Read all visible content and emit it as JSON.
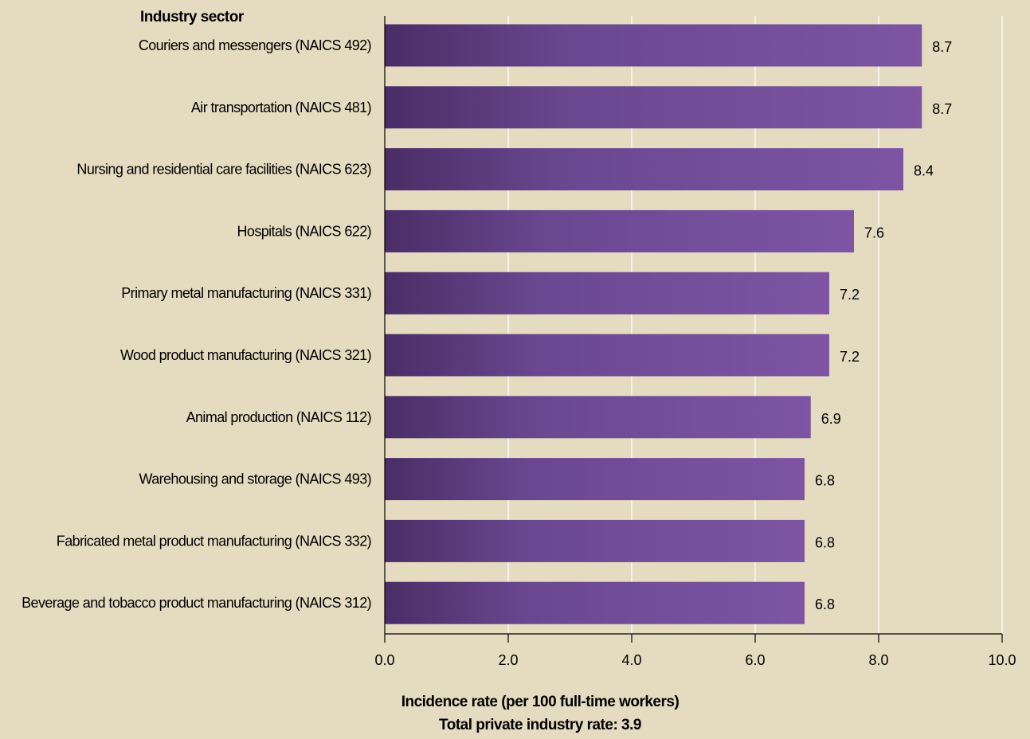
{
  "colors": {
    "background": "#e5dbc0",
    "bar_dark": "#4a2d66",
    "bar_mid": "#6a4890",
    "bar_light": "#7d55a3",
    "gridline": "#ffffff",
    "axis": "#000000"
  },
  "chart_data": {
    "type": "bar",
    "orientation": "horizontal",
    "category_axis_title": "Industry sector",
    "xlabel": "Incidence rate (per 100 full-time workers)",
    "footnote": "Total private industry rate: 3.9",
    "xlim": [
      0,
      10
    ],
    "ticks": [
      0,
      2,
      4,
      6,
      8,
      10
    ],
    "tick_labels": [
      "0.0",
      "2.0",
      "4.0",
      "6.0",
      "8.0",
      "10.0"
    ],
    "grid": true,
    "categories": [
      "Couriers and messengers (NAICS 492)",
      "Air transportation (NAICS 481)",
      "Nursing and residential care facilities (NAICS 623)",
      "Hospitals (NAICS 622)",
      "Primary metal manufacturing (NAICS 331)",
      "Wood product manufacturing (NAICS 321)",
      "Animal production (NAICS 112)",
      "Warehousing and storage (NAICS 493)",
      "Fabricated metal product manufacturing (NAICS 332)",
      "Beverage and tobacco product manufacturing (NAICS 312)"
    ],
    "values": [
      8.7,
      8.7,
      8.4,
      7.6,
      7.2,
      7.2,
      6.9,
      6.8,
      6.8,
      6.8
    ],
    "value_labels": [
      "8.7",
      "8.7",
      "8.4",
      "7.6",
      "7.2",
      "7.2",
      "6.9",
      "6.8",
      "6.8",
      "6.8"
    ]
  }
}
